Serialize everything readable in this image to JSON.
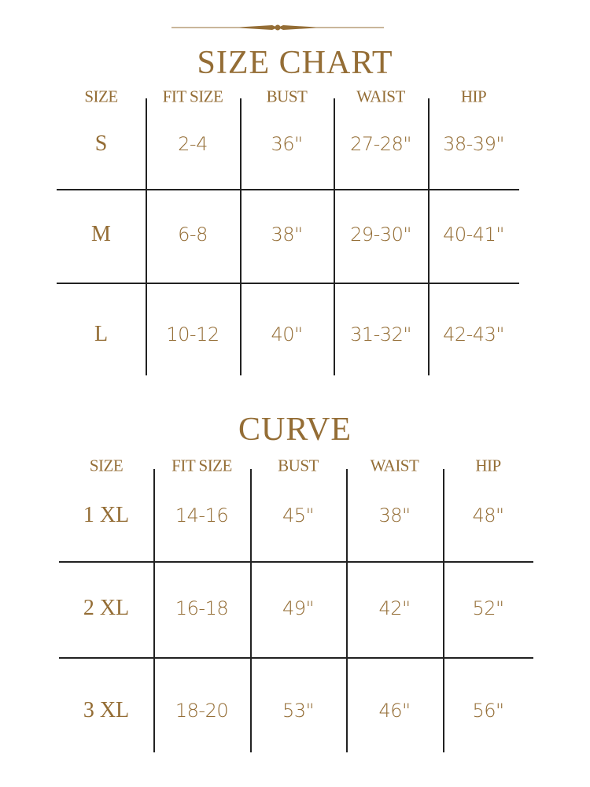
{
  "colors": {
    "text": "#946d35",
    "rule": "#222222"
  },
  "ornament": "decorative-divider",
  "size_chart": {
    "title": "SIZE CHART",
    "headers": [
      "SIZE",
      "FIT SIZE",
      "BUST",
      "WAIST",
      "HIP"
    ],
    "rows": [
      [
        "S",
        "2-4",
        "36\"",
        "27-28\"",
        "38-39\""
      ],
      [
        "M",
        "6-8",
        "38\"",
        "29-30\"",
        "40-41\""
      ],
      [
        "L",
        "10-12",
        "40\"",
        "31-32\"",
        "42-43\""
      ]
    ]
  },
  "curve_chart": {
    "title": "CURVE",
    "headers": [
      "SIZE",
      "FIT SIZE",
      "BUST",
      "WAIST",
      "HIP"
    ],
    "rows": [
      [
        "1 XL",
        "14-16",
        "45\"",
        "38\"",
        "48\""
      ],
      [
        "2 XL",
        "16-18",
        "49\"",
        "42\"",
        "52\""
      ],
      [
        "3 XL",
        "18-20",
        "53\"",
        "46\"",
        "56\""
      ]
    ]
  }
}
